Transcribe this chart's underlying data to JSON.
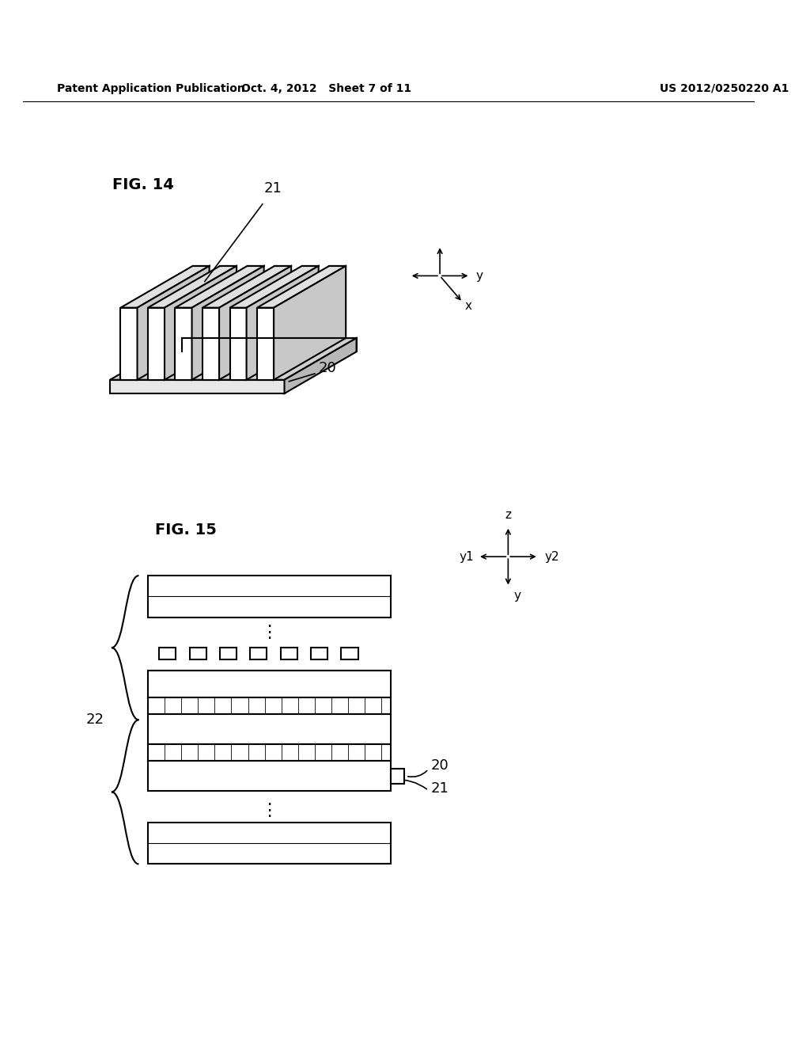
{
  "background_color": "#ffffff",
  "header_left": "Patent Application Publication",
  "header_mid": "Oct. 4, 2012   Sheet 7 of 11",
  "header_right": "US 2012/0250220 A1",
  "fig14_label": "FIG. 14",
  "fig15_label": "FIG. 15",
  "label_21_fig14": "21",
  "label_20_fig14": "20",
  "label_20_fig15": "20",
  "label_21_fig15": "21",
  "label_22_fig15": "22",
  "line_color": "#000000",
  "fill_color": "#ffffff",
  "gray_color": "#aaaaaa"
}
